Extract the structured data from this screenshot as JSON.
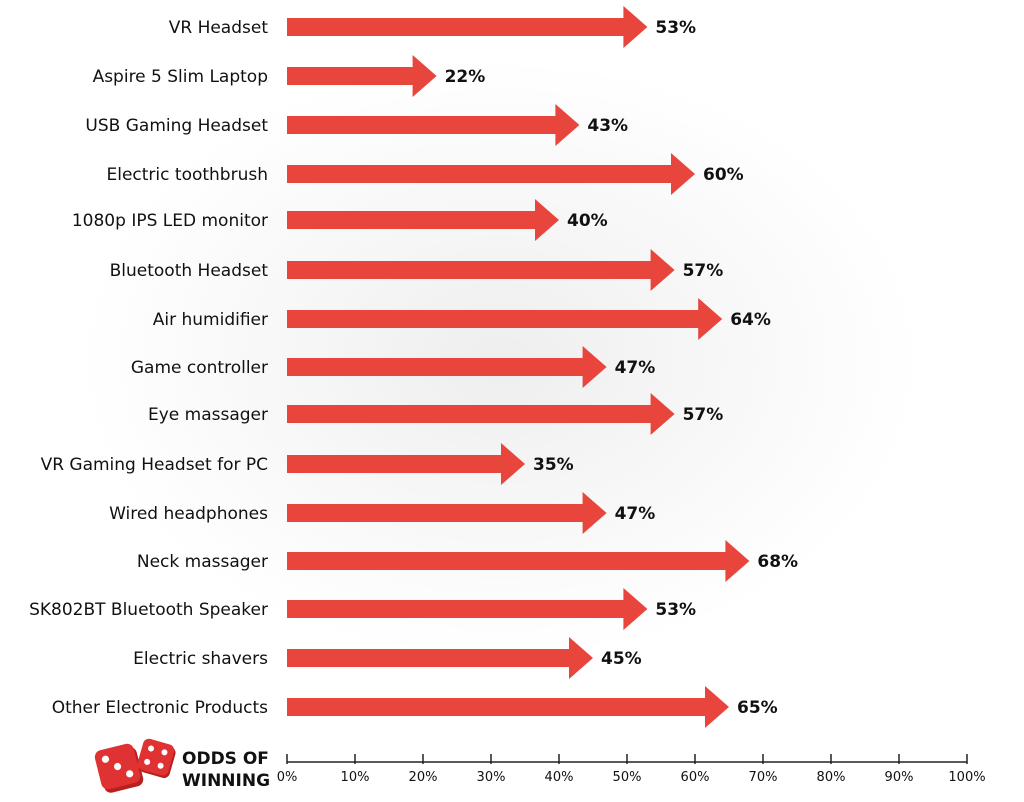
{
  "chart_data": {
    "type": "bar",
    "orientation": "horizontal",
    "categories": [
      "VR Headset",
      "Aspire 5 Slim Laptop",
      "USB Gaming Headset",
      "Electric toothbrush",
      "1080p IPS LED monitor",
      "Bluetooth Headset",
      "Air humidifier",
      "Game controller",
      "Eye massager",
      "VR Gaming Headset for PC",
      "Wired headphones",
      "Neck massager",
      "SK802BT Bluetooth Speaker",
      "Electric shavers",
      "Other Electronic Products"
    ],
    "values": [
      53,
      22,
      43,
      60,
      40,
      57,
      64,
      47,
      57,
      35,
      47,
      68,
      53,
      45,
      65
    ],
    "value_labels": [
      "53%",
      "22%",
      "43%",
      "60%",
      "40%",
      "57%",
      "64%",
      "47%",
      "57%",
      "35%",
      "47%",
      "68%",
      "53%",
      "45%",
      "65%"
    ],
    "title": "",
    "axis_title": [
      "ODDS OF",
      "WINNING"
    ],
    "xlim": [
      0,
      100
    ],
    "x_ticks": [
      "0%",
      "10%",
      "20%",
      "30%",
      "40%",
      "50%",
      "60%",
      "70%",
      "80%",
      "90%",
      "100%"
    ],
    "bar_style": "arrow",
    "grid": false,
    "colors": {
      "bar": "#e8453c",
      "text": "#111111",
      "axis": "#222222",
      "dice": "#d42a2a"
    },
    "icon": "dice-icon"
  }
}
